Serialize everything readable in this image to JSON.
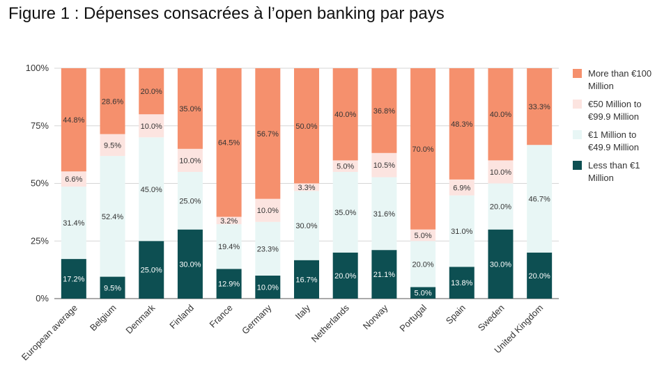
{
  "title": "Figure 1 : Dépenses consacrées à l’open banking par pays",
  "chart_data": {
    "type": "bar",
    "stacked": true,
    "normalized": true,
    "categories": [
      "European average",
      "Belgium",
      "Denmark",
      "Finland",
      "France",
      "Germany",
      "Italy",
      "Netherlands",
      "Norway",
      "Portugal",
      "Spain",
      "Sweden",
      "United Kingdom"
    ],
    "series": [
      {
        "name": "Less than €1 Million",
        "color": "#0d4f52",
        "label_color": "#ffffff",
        "values": [
          17.2,
          9.5,
          25.0,
          30.0,
          12.9,
          10.0,
          16.7,
          20.0,
          21.1,
          5.0,
          13.8,
          30.0,
          20.0
        ],
        "labels": [
          "17.2%",
          "9.5%",
          "25.0%",
          "30.0%",
          "12.9%",
          "10.0%",
          "16.7%",
          "20.0%",
          "21.1%",
          "5.0%",
          "13.8%",
          "30.0%",
          "20.0%"
        ]
      },
      {
        "name": "€1 Million to €49.9 Million",
        "color": "#e8f6f5",
        "label_color": "#333333",
        "values": [
          31.4,
          52.4,
          45.0,
          25.0,
          19.4,
          23.3,
          30.0,
          35.0,
          31.6,
          20.0,
          31.0,
          20.0,
          46.7
        ],
        "labels": [
          "31.4%",
          "52.4%",
          "45.0%",
          "25.0%",
          "19.4%",
          "23.3%",
          "30.0%",
          "35.0%",
          "31.6%",
          "20.0%",
          "31.0%",
          "20.0%",
          "46.7%"
        ]
      },
      {
        "name": "€50 Million to €99.9 Million",
        "color": "#fce4e0",
        "label_color": "#333333",
        "values": [
          6.6,
          9.5,
          10.0,
          10.0,
          3.2,
          10.0,
          3.3,
          5.0,
          10.5,
          5.0,
          6.9,
          10.0,
          0
        ],
        "labels": [
          "6.6%",
          "9.5%",
          "10.0%",
          "10.0%",
          "3.2%",
          "10.0%",
          "3.3%",
          "5.0%",
          "10.5%",
          "5.0%",
          "6.9%",
          "10.0%",
          ""
        ]
      },
      {
        "name": "More than €100 Million",
        "color": "#f5906d",
        "label_color": "#333333",
        "values": [
          44.8,
          28.6,
          20.0,
          35.0,
          64.5,
          56.7,
          50.0,
          40.0,
          36.8,
          70.0,
          48.3,
          40.0,
          33.3
        ],
        "labels": [
          "44.8%",
          "28.6%",
          "20.0%",
          "35.0%",
          "64.5%",
          "56.7%",
          "50.0%",
          "40.0%",
          "36.8%",
          "70.0%",
          "48.3%",
          "40.0%",
          "33.3%"
        ]
      }
    ],
    "legend_lines": [
      [
        "More than €100",
        "Million"
      ],
      [
        "€50 Million to",
        "€99.9 Million"
      ],
      [
        "€1 Million to",
        "€49.9 Million"
      ],
      [
        "Less than €1",
        "Million"
      ]
    ],
    "legend_order": [
      3,
      2,
      1,
      0
    ],
    "ylim": [
      0,
      100
    ],
    "yticks": [
      0,
      25,
      50,
      75,
      100
    ],
    "ytick_labels": [
      "0%",
      "25%",
      "50%",
      "75%",
      "100%"
    ],
    "grid": true,
    "legend_position": "right"
  }
}
